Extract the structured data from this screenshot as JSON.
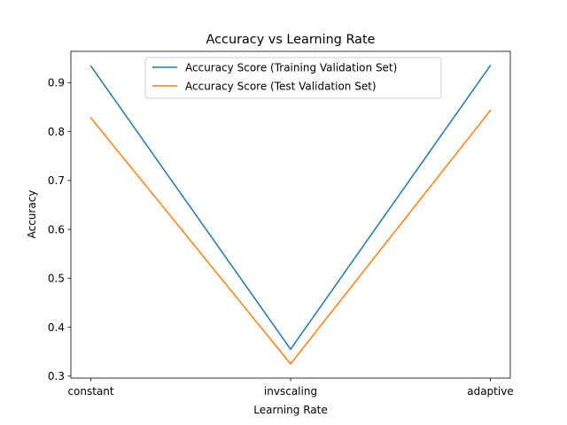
{
  "chart_data": {
    "type": "line",
    "title": "Accuracy vs Learning Rate",
    "xlabel": "Learning Rate",
    "ylabel": "Accuracy",
    "categories": [
      "constant",
      "invscaling",
      "adaptive"
    ],
    "series": [
      {
        "name": "Accuracy Score (Training Validation Set)",
        "values": [
          0.934,
          0.355,
          0.935
        ],
        "color": "#1f77b4"
      },
      {
        "name": "Accuracy Score (Test Validation Set)",
        "values": [
          0.828,
          0.325,
          0.843
        ],
        "color": "#ff7f0e"
      }
    ],
    "ylim": [
      0.296,
      0.964
    ],
    "yticks": [
      0.3,
      0.4,
      0.5,
      0.6,
      0.7,
      0.8,
      0.9
    ],
    "ytick_labels": [
      "0.3",
      "0.4",
      "0.5",
      "0.6",
      "0.7",
      "0.8",
      "0.9"
    ],
    "grid": false,
    "legend_position": "top-center"
  }
}
